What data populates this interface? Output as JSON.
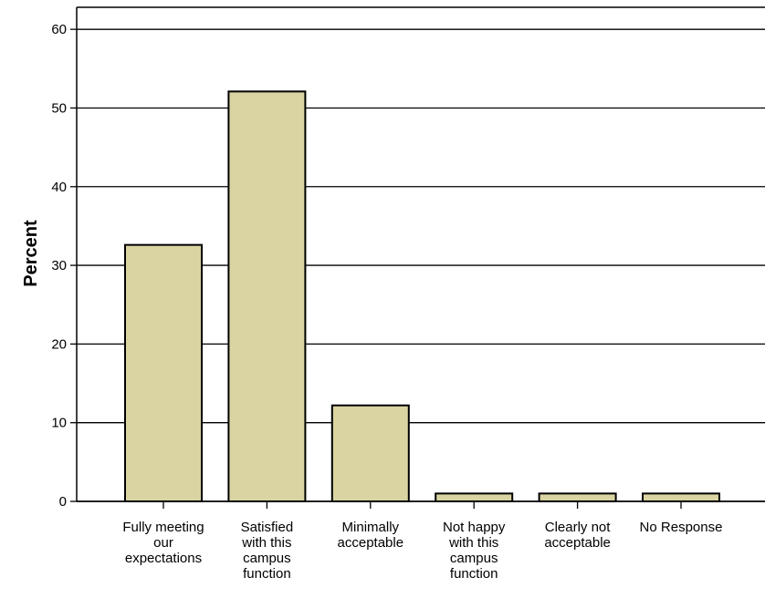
{
  "chart_data": {
    "type": "bar",
    "title": "",
    "xlabel": "",
    "ylabel": "Percent",
    "ylim": [
      0,
      60
    ],
    "yticks": [
      0,
      10,
      20,
      30,
      40,
      50,
      60
    ],
    "grid": true,
    "categories": [
      [
        "Fully meeting",
        "our",
        "expectations"
      ],
      [
        "Satisfied",
        "with this",
        "campus",
        "function"
      ],
      [
        "Minimally",
        "acceptable"
      ],
      [
        "Not happy",
        "with this",
        "campus",
        "function"
      ],
      [
        "Clearly not",
        "acceptable"
      ],
      [
        "No Response"
      ]
    ],
    "values": [
      32.6,
      52.1,
      12.2,
      1.0,
      1.0,
      1.0
    ],
    "colors": {
      "bar_fill": "#d9d4a2",
      "bar_stroke": "#000000",
      "grid": "#000000"
    }
  }
}
